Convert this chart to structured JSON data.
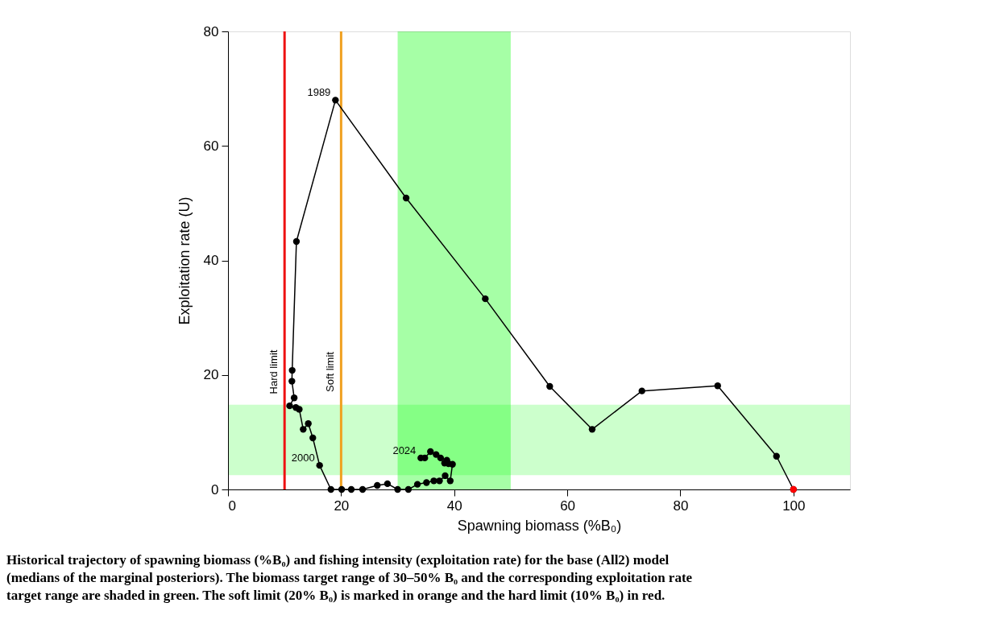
{
  "chart_data": {
    "type": "line",
    "xlabel": "Spawning biomass (%B₀)",
    "ylabel": "Exploitation rate (U)",
    "xlim": [
      0,
      110
    ],
    "ylim": [
      0,
      80
    ],
    "xticks": [
      0,
      20,
      40,
      60,
      80,
      100
    ],
    "yticks": [
      0,
      20,
      40,
      60,
      80
    ],
    "grid": false,
    "marker": "circle",
    "line_style": "solid",
    "series": [
      {
        "color": "#000000",
        "x": [
          100,
          97.0,
          86.6,
          73.2,
          64.4,
          56.9,
          45.5,
          31.5,
          19.0,
          12.1,
          11.35,
          11.3,
          11.7,
          10.9,
          12.0,
          12.6,
          13.3,
          14.2,
          15.0,
          16.2,
          18.2,
          20.1,
          21.8,
          23.8,
          26.4,
          28.2,
          30.0,
          31.9,
          33.5,
          35.1,
          36.4,
          37.4,
          38.4,
          39.3,
          39.7,
          39.0,
          38.3,
          38.7,
          37.6,
          36.8,
          35.8,
          34.8,
          34.1
        ],
        "values": [
          0,
          5.8,
          18.1,
          17.2,
          10.5,
          18.0,
          33.3,
          50.9,
          68.0,
          43.3,
          20.8,
          18.9,
          16.0,
          14.6,
          14.3,
          14.0,
          10.5,
          11.5,
          9.0,
          4.2,
          0,
          0,
          0,
          0,
          0.7,
          1.0,
          0,
          0,
          0.9,
          1.2,
          1.5,
          1.5,
          2.4,
          1.5,
          4.4,
          4.5,
          4.6,
          5.1,
          5.5,
          6.1,
          6.6,
          5.5,
          5.5
        ]
      },
      {
        "type": "scatter",
        "color": "#ff0000",
        "x": [
          100
        ],
        "values": [
          0
        ]
      }
    ],
    "ref_lines": [
      {
        "axis": "x",
        "value": 10,
        "label": "Hard limit",
        "color": "#ee1111"
      },
      {
        "axis": "x",
        "value": 20,
        "label": "Soft limit",
        "color": "#f0a020"
      }
    ],
    "bands": [
      {
        "axis": "x",
        "from": 30,
        "to": 50,
        "color": "#a6ffa6"
      },
      {
        "axis": "y",
        "from": 2.5,
        "to": 14.8,
        "color": "#ccffcc"
      }
    ],
    "annotations": [
      {
        "text": "1989",
        "x": 19.0,
        "y": 68.0
      },
      {
        "text": "2000",
        "x": 16.2,
        "y": 4.2
      },
      {
        "text": "2024",
        "x": 34.1,
        "y": 5.5
      },
      "Historical trajectory of spawning biomass (%B₀) and fishing intensity (exploitation rate) for the base (All2) model (medians of the marginal posteriors). The biomass target range of 30–50% B₀ and the corresponding exploitation rate target range are shaded in green. The soft limit (20% B₀) is marked in orange and the hard limit (10% B₀) in red."
    ]
  }
}
